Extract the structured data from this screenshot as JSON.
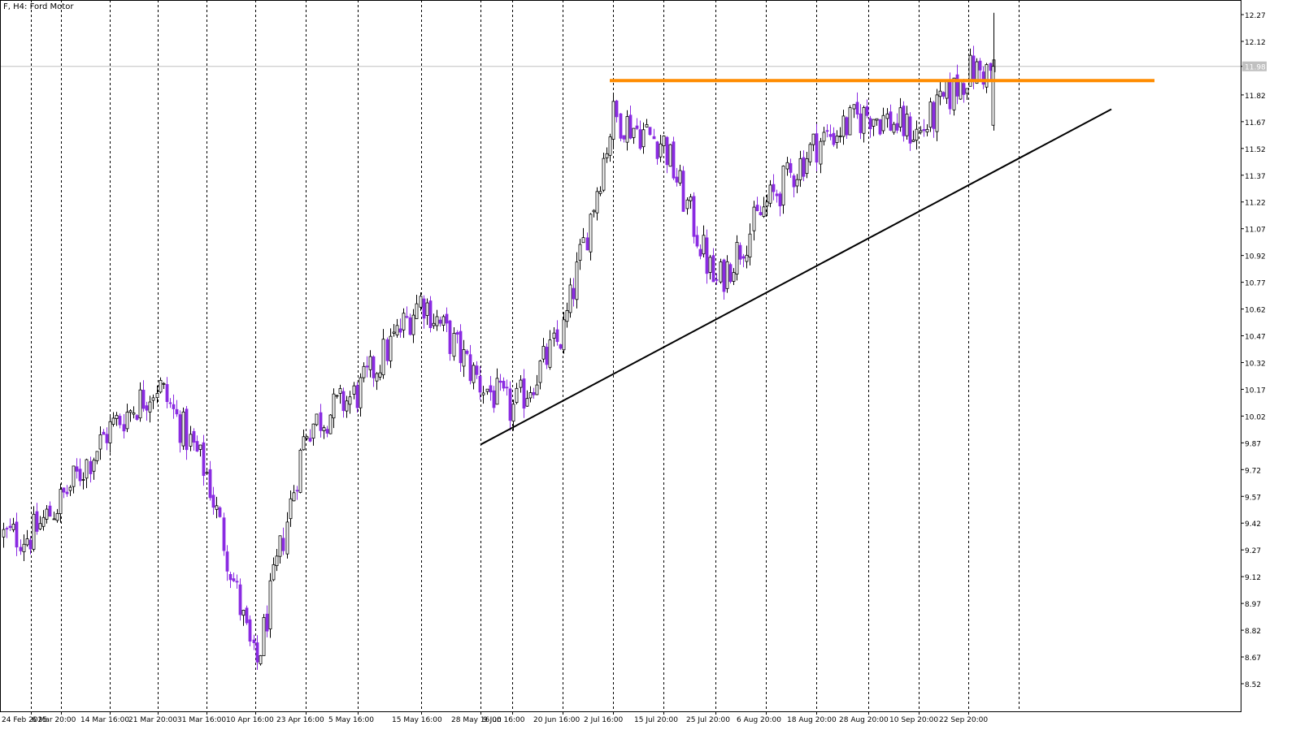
{
  "header": {
    "symbol": "F, H4:",
    "description": "Ford Motor"
  },
  "colors": {
    "background": "#ffffff",
    "bull_candle": "#000000",
    "bear_candle": "#8a2be2",
    "grid_line": "#000000",
    "resistance_line": "#ff8c00",
    "trend_line": "#000000",
    "price_line": "#c0c0c0",
    "axis_text": "#000000"
  },
  "chart_data": {
    "type": "candlestick",
    "timeframe": "H4",
    "symbol": "F",
    "ylim": [
      8.44,
      12.32
    ],
    "y_ticks": [
      "12.27",
      "12.12",
      "11.98",
      "11.82",
      "11.67",
      "11.52",
      "11.37",
      "11.22",
      "11.07",
      "10.92",
      "10.77",
      "10.62",
      "10.47",
      "10.32",
      "10.17",
      "10.02",
      "9.87",
      "9.72",
      "9.57",
      "9.42",
      "9.27",
      "9.12",
      "8.97",
      "8.82",
      "8.67",
      "8.52"
    ],
    "current_price": "11.98",
    "x_ticks": [
      "24 Feb 2025",
      "6 Mar 20:00",
      "14 Mar 16:00",
      "21 Mar 20:00",
      "31 Mar 16:00",
      "10 Apr 16:00",
      "23 Apr 16:00",
      "5 May 16:00",
      "15 May 16:00",
      "28 May 16:00",
      "9 Jun 16:00",
      "20 Jun 16:00",
      "2 Jul 16:00",
      "15 Jul 20:00",
      "25 Jul 20:00",
      "6 Aug 20:00",
      "18 Aug 20:00",
      "28 Aug 20:00",
      "10 Sep 20:00",
      "22 Sep 20:00"
    ],
    "grid": "vertical dashed",
    "anchors": [
      [
        "24 Feb 2025",
        9.35
      ],
      [
        "6 Mar 20:00",
        9.55
      ],
      [
        "14 Mar 16:00",
        9.95
      ],
      [
        "21 Mar 20:00",
        10.2
      ],
      [
        "31 Mar 16:00",
        9.7
      ],
      [
        "10 Apr 16:00",
        8.6
      ],
      [
        "23 Apr 16:00",
        9.95
      ],
      [
        "5 May 16:00",
        10.15
      ],
      [
        "15 May 16:00",
        10.68
      ],
      [
        "28 May 16:00",
        10.2
      ],
      [
        "9 Jun 16:00",
        10.05
      ],
      [
        "20 Jun 16:00",
        10.48
      ],
      [
        "2 Jul 16:00",
        11.7
      ],
      [
        "15 Jul 20:00",
        11.55
      ],
      [
        "25 Jul 20:00",
        10.75
      ],
      [
        "6 Aug 20:00",
        11.2
      ],
      [
        "18 Aug 20:00",
        11.55
      ],
      [
        "28 Aug 20:00",
        11.72
      ],
      [
        "10 Sep 20:00",
        11.6
      ],
      [
        "22 Sep 20:00",
        11.95
      ]
    ],
    "annotations": [
      {
        "type": "horizontal-line",
        "name": "resistance",
        "y": 11.9,
        "from": "2 Jul 16:00",
        "to": "end"
      },
      {
        "type": "trend-line",
        "name": "support",
        "from": [
          "28 May 16:00",
          9.86
        ],
        "to": [
          "end",
          11.74
        ]
      }
    ]
  }
}
